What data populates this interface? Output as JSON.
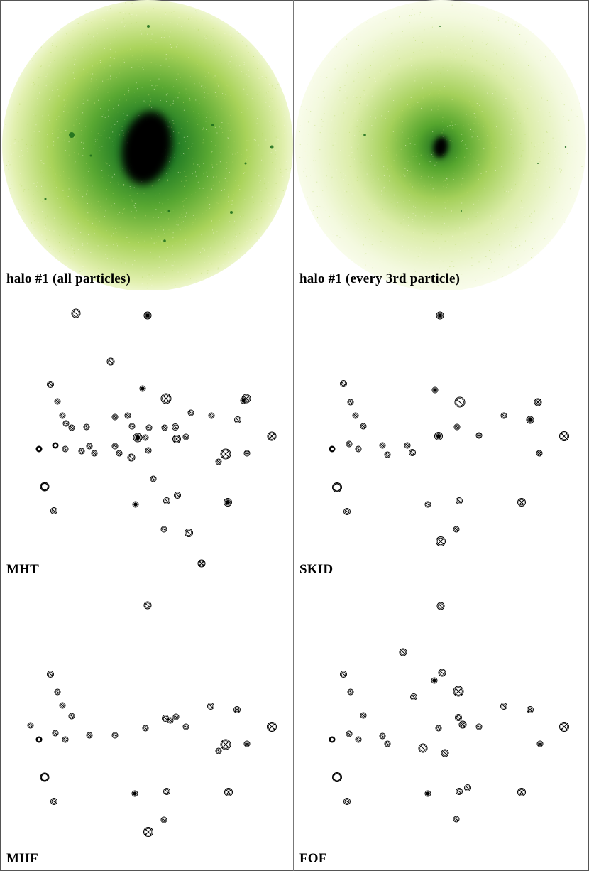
{
  "panels": [
    {
      "id": "p1",
      "label": "halo #1 (all particles)",
      "type": "halo",
      "density": "all"
    },
    {
      "id": "p2",
      "label": "halo #1 (every 3rd particle)",
      "type": "halo",
      "density": "every-3rd"
    },
    {
      "id": "p3",
      "label": "MHT",
      "type": "subhalos",
      "finder": "MHT"
    },
    {
      "id": "p4",
      "label": "SKID",
      "type": "subhalos",
      "finder": "SKID"
    },
    {
      "id": "p5",
      "label": "MHF",
      "type": "subhalos",
      "finder": "MHF"
    },
    {
      "id": "p6",
      "label": "FOF",
      "type": "subhalos",
      "finder": "FOF"
    }
  ],
  "colors": {
    "halo_outer": "#e9f3b4",
    "halo_mid": "#8cc63f",
    "halo_inner": "#1f6b1f",
    "halo_core": "#000000",
    "marker": "#000000"
  }
}
